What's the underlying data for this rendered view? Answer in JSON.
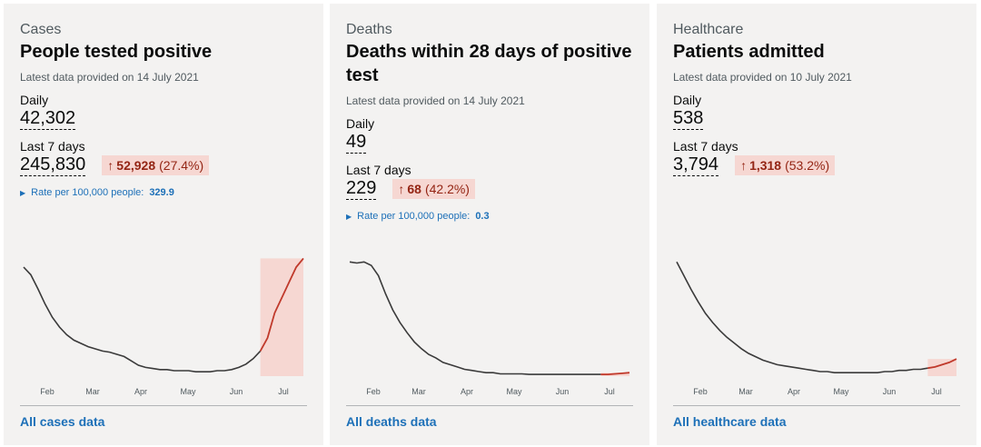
{
  "colors": {
    "line": "#3a3a3a",
    "recent": "#c0392b",
    "band": "#f6d7d2",
    "link": "#1d70b8"
  },
  "months": [
    "Feb",
    "Mar",
    "Apr",
    "May",
    "Jun",
    "Jul"
  ],
  "cards": [
    {
      "category": "Cases",
      "title": "People tested positive",
      "latest": "Latest data provided on 14 July 2021",
      "daily_label": "Daily",
      "daily_value": "42,302",
      "week_label": "Last 7 days",
      "week_value": "245,830",
      "change_abs": "52,928",
      "change_pct": "(27.4%)",
      "change_arrow": "↑",
      "rate_label": "Rate per 100,000 people:",
      "rate_value": "329.9",
      "rate_icon": "triangle-right-icon",
      "link": "All cases data",
      "chart_data": {
        "type": "line",
        "x_labels": [
          "Feb",
          "Mar",
          "Apr",
          "May",
          "Jun",
          "Jul"
        ],
        "values": [
          100,
          93,
          80,
          66,
          54,
          45,
          38,
          33,
          30,
          27,
          25,
          23,
          22,
          20,
          18,
          14,
          10,
          8,
          7,
          6,
          6,
          5,
          5,
          5,
          4,
          4,
          4,
          5,
          5,
          6,
          8,
          11,
          16,
          23,
          35,
          58,
          72,
          86,
          100,
          108
        ],
        "recent_points": 6,
        "ylim": [
          0,
          110
        ]
      }
    },
    {
      "category": "Deaths",
      "title": "Deaths within 28 days of positive test",
      "latest": "Latest data provided on 14 July 2021",
      "daily_label": "Daily",
      "daily_value": "49",
      "week_label": "Last 7 days",
      "week_value": "229",
      "change_abs": "68",
      "change_pct": "(42.2%)",
      "change_arrow": "↑",
      "rate_label": "Rate per 100,000 people:",
      "rate_value": "0.3",
      "rate_icon": "triangle-right-icon",
      "link": "All deaths data",
      "chart_data": {
        "type": "line",
        "x_labels": [
          "Feb",
          "Mar",
          "Apr",
          "May",
          "Jun",
          "Jul"
        ],
        "values": [
          100,
          99,
          100,
          97,
          88,
          72,
          58,
          47,
          38,
          30,
          24,
          19,
          16,
          12,
          10,
          8,
          6,
          5,
          4,
          3,
          3,
          2,
          2,
          2,
          2,
          1.5,
          1.5,
          1.5,
          1.5,
          1.5,
          1.5,
          1.5,
          1.5,
          1.5,
          1.5,
          1.5,
          1.5,
          2,
          2.5,
          3
        ],
        "recent_points": 4,
        "ylim": [
          0,
          105
        ]
      }
    },
    {
      "category": "Healthcare",
      "title": "Patients admitted",
      "latest": "Latest data provided on 10 July 2021",
      "daily_label": "Daily",
      "daily_value": "538",
      "week_label": "Last 7 days",
      "week_value": "3,794",
      "change_abs": "1,318",
      "change_pct": "(53.2%)",
      "change_arrow": "↑",
      "rate_label": "",
      "rate_value": "",
      "link": "All healthcare data",
      "chart_data": {
        "type": "line",
        "x_labels": [
          "Feb",
          "Mar",
          "Apr",
          "May",
          "Jun",
          "Jul"
        ],
        "values": [
          100,
          88,
          76,
          65,
          55,
          47,
          40,
          34,
          29,
          24,
          20,
          17,
          14,
          12,
          10,
          9,
          8,
          7,
          6,
          5,
          4,
          4,
          3,
          3,
          3,
          3,
          3,
          3,
          3,
          4,
          4,
          5,
          5,
          6,
          6,
          7,
          8,
          10,
          12,
          15
        ],
        "recent_points": 4,
        "ylim": [
          0,
          105
        ]
      }
    }
  ]
}
